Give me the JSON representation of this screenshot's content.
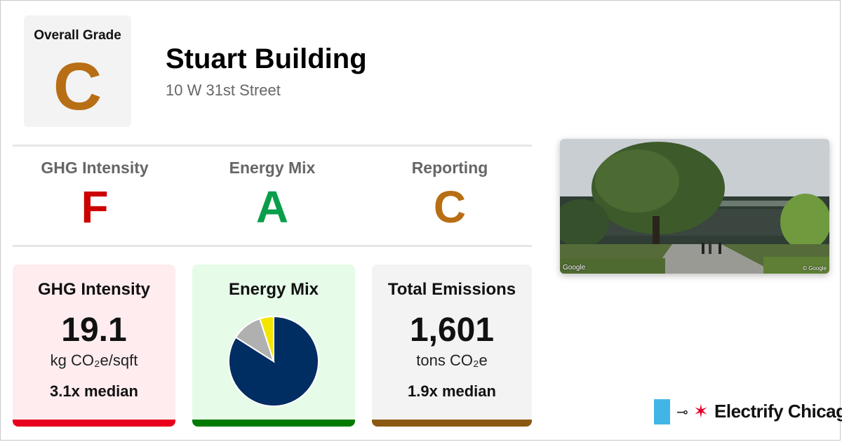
{
  "overall": {
    "label": "Overall Grade",
    "grade": "C",
    "grade_color": "#b86e14"
  },
  "building": {
    "name": "Stuart Building",
    "address": "10 W 31st Street"
  },
  "grades": [
    {
      "label": "GHG Intensity",
      "grade": "F",
      "color": "#cc0000"
    },
    {
      "label": "Energy Mix",
      "grade": "A",
      "color": "#0a9e4a"
    },
    {
      "label": "Reporting",
      "grade": "C",
      "color": "#b86e14"
    }
  ],
  "cards": {
    "ghg": {
      "title": "GHG Intensity",
      "value": "19.1",
      "unit": "kg CO₂e/sqft",
      "median": "3.1x median",
      "bg": "#ffecef",
      "bar": "#e8001c"
    },
    "mix": {
      "title": "Energy Mix",
      "bg": "#e6fbe8",
      "bar": "#007a00"
    },
    "total": {
      "title": "Total Emissions",
      "value": "1,601",
      "unit": "tons CO₂e",
      "median": "1.9x median",
      "bg": "#f3f3f3",
      "bar": "#8a5a12"
    }
  },
  "chart_data": {
    "type": "pie",
    "values": [
      84,
      11,
      5
    ],
    "colors": [
      "#002d62",
      "#b0b0b0",
      "#f2e600"
    ]
  },
  "photo": {
    "watermark_left": "Google",
    "watermark_right": "© Google"
  },
  "logo": {
    "text": "Electrify Chicago",
    "flag_color": "#41b6e6",
    "star_color": "#e4002b"
  }
}
